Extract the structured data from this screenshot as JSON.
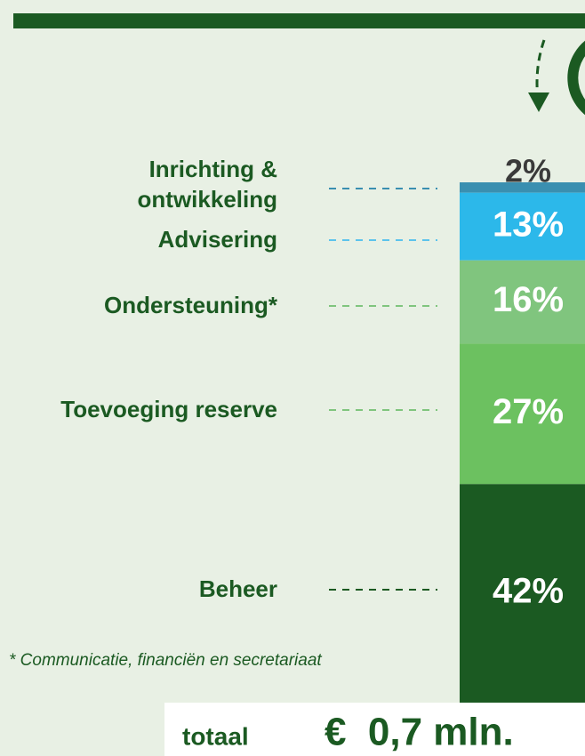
{
  "chart_data": {
    "type": "stacked_bar",
    "categories": [
      "Inrichting & ontwikkeling",
      "Advisering",
      "Ondersteuning*",
      "Toevoeging reserve",
      "Beheer"
    ],
    "values": [
      2,
      13,
      16,
      27,
      42
    ],
    "value_labels": [
      "2%",
      "13%",
      "16%",
      "27%",
      "42%"
    ],
    "colors": [
      "#3a8fb0",
      "#2cb8ea",
      "#80c57e",
      "#6cc160",
      "#1b5a22"
    ],
    "footnote": "* Communicatie, financiën en secretariaat",
    "total_label": "totaal",
    "total_value": "€  0,7 mln."
  }
}
